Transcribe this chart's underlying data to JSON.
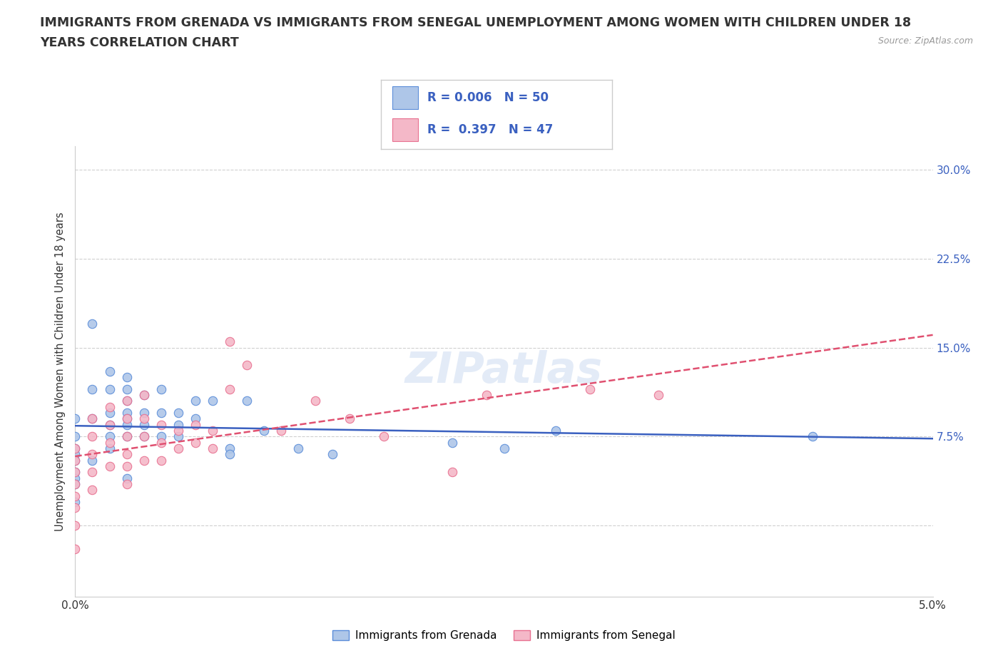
{
  "title_line1": "IMMIGRANTS FROM GRENADA VS IMMIGRANTS FROM SENEGAL UNEMPLOYMENT AMONG WOMEN WITH CHILDREN UNDER 18",
  "title_line2": "YEARS CORRELATION CHART",
  "source": "Source: ZipAtlas.com",
  "ylabel": "Unemployment Among Women with Children Under 18 years",
  "xmin": 0.0,
  "xmax": 0.05,
  "ymin": -0.06,
  "ymax": 0.32,
  "yticks": [
    0.0,
    0.075,
    0.15,
    0.225,
    0.3
  ],
  "ytick_labels": [
    "",
    "7.5%",
    "15.0%",
    "22.5%",
    "30.0%"
  ],
  "xticks": [
    0.0,
    0.05
  ],
  "xtick_labels": [
    "0.0%",
    "5.0%"
  ],
  "grenada_color": "#aec6e8",
  "senegal_color": "#f4b8c8",
  "grenada_edge_color": "#5b8dd9",
  "senegal_edge_color": "#e87090",
  "grenada_line_color": "#3a60c0",
  "senegal_line_color": "#e05070",
  "legend_text_color": "#3a60c0",
  "grenada_label": "Immigrants from Grenada",
  "senegal_label": "Immigrants from Senegal",
  "grenada_scatter_x": [
    0.0,
    0.0,
    0.0,
    0.0,
    0.0,
    0.0,
    0.0,
    0.0,
    0.0,
    0.001,
    0.001,
    0.001,
    0.001,
    0.002,
    0.002,
    0.002,
    0.002,
    0.002,
    0.002,
    0.003,
    0.003,
    0.003,
    0.003,
    0.003,
    0.003,
    0.003,
    0.003,
    0.004,
    0.004,
    0.004,
    0.004,
    0.005,
    0.005,
    0.005,
    0.006,
    0.006,
    0.006,
    0.007,
    0.007,
    0.008,
    0.009,
    0.009,
    0.01,
    0.011,
    0.013,
    0.015,
    0.022,
    0.025,
    0.028,
    0.043
  ],
  "grenada_scatter_y": [
    0.09,
    0.075,
    0.065,
    0.06,
    0.055,
    0.045,
    0.04,
    0.035,
    0.02,
    0.17,
    0.115,
    0.09,
    0.055,
    0.13,
    0.115,
    0.095,
    0.085,
    0.075,
    0.065,
    0.125,
    0.115,
    0.105,
    0.095,
    0.09,
    0.085,
    0.075,
    0.04,
    0.11,
    0.095,
    0.085,
    0.075,
    0.115,
    0.095,
    0.075,
    0.095,
    0.085,
    0.075,
    0.105,
    0.09,
    0.105,
    0.065,
    0.06,
    0.105,
    0.08,
    0.065,
    0.06,
    0.07,
    0.065,
    0.08,
    0.075
  ],
  "senegal_scatter_x": [
    0.0,
    0.0,
    0.0,
    0.0,
    0.0,
    0.0,
    0.0,
    0.0,
    0.001,
    0.001,
    0.001,
    0.001,
    0.001,
    0.002,
    0.002,
    0.002,
    0.002,
    0.003,
    0.003,
    0.003,
    0.003,
    0.003,
    0.003,
    0.004,
    0.004,
    0.004,
    0.004,
    0.005,
    0.005,
    0.005,
    0.006,
    0.006,
    0.007,
    0.007,
    0.008,
    0.008,
    0.009,
    0.009,
    0.01,
    0.012,
    0.014,
    0.016,
    0.018,
    0.022,
    0.024,
    0.03,
    0.034
  ],
  "senegal_scatter_y": [
    0.065,
    0.055,
    0.045,
    0.035,
    0.025,
    0.015,
    0.0,
    -0.02,
    0.09,
    0.075,
    0.06,
    0.045,
    0.03,
    0.1,
    0.085,
    0.07,
    0.05,
    0.105,
    0.09,
    0.075,
    0.06,
    0.05,
    0.035,
    0.11,
    0.09,
    0.075,
    0.055,
    0.085,
    0.07,
    0.055,
    0.08,
    0.065,
    0.085,
    0.07,
    0.08,
    0.065,
    0.155,
    0.115,
    0.135,
    0.08,
    0.105,
    0.09,
    0.075,
    0.045,
    0.11,
    0.115,
    0.11
  ],
  "background_color": "#ffffff",
  "grid_color": "#d0d0d0",
  "title_fontsize": 12.5,
  "axis_label_fontsize": 10.5,
  "tick_fontsize": 11,
  "legend_fontsize": 12
}
